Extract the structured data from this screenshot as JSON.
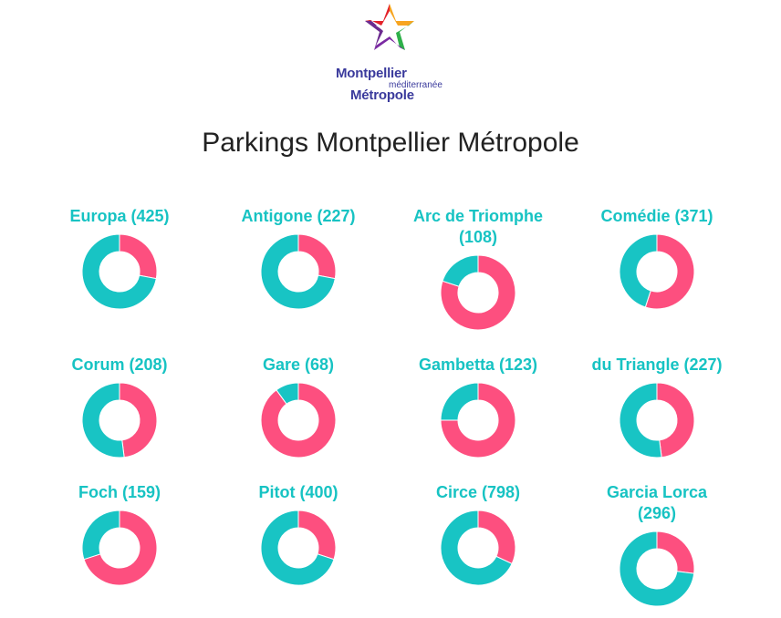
{
  "header": {
    "logo": {
      "line1": "Montpellier",
      "line2": "méditerranée",
      "line3": "Métropole",
      "icon": "star-logo-icon"
    },
    "title": "Parkings Montpellier Métropole"
  },
  "colors": {
    "free": "#18c4c4",
    "occupied": "#fd4f7f",
    "title_color": "#17c3c3"
  },
  "chart_data": {
    "type": "pie",
    "charts": [
      {
        "title": "Europa (425)",
        "values": [
          0.28,
          0.72
        ]
      },
      {
        "title": "Antigone (227)",
        "values": [
          0.28,
          0.72
        ]
      },
      {
        "title": "Arc de Triomphe\n(108)",
        "values": [
          0.8,
          0.2
        ]
      },
      {
        "title": "Comédie (371)",
        "values": [
          0.55,
          0.45
        ]
      },
      {
        "title": "Corum (208)",
        "values": [
          0.48,
          0.52
        ]
      },
      {
        "title": "Gare (68)",
        "values": [
          0.9,
          0.1
        ]
      },
      {
        "title": "Gambetta (123)",
        "values": [
          0.75,
          0.25
        ]
      },
      {
        "title": "du Triangle (227)",
        "values": [
          0.48,
          0.52
        ]
      },
      {
        "title": "Foch (159)",
        "values": [
          0.7,
          0.3
        ]
      },
      {
        "title": "Pitot (400)",
        "values": [
          0.3,
          0.7
        ]
      },
      {
        "title": "Circe (798)",
        "values": [
          0.32,
          0.68
        ]
      },
      {
        "title": "Garcia Lorca\n(296)",
        "values": [
          0.27,
          0.73
        ]
      }
    ]
  }
}
